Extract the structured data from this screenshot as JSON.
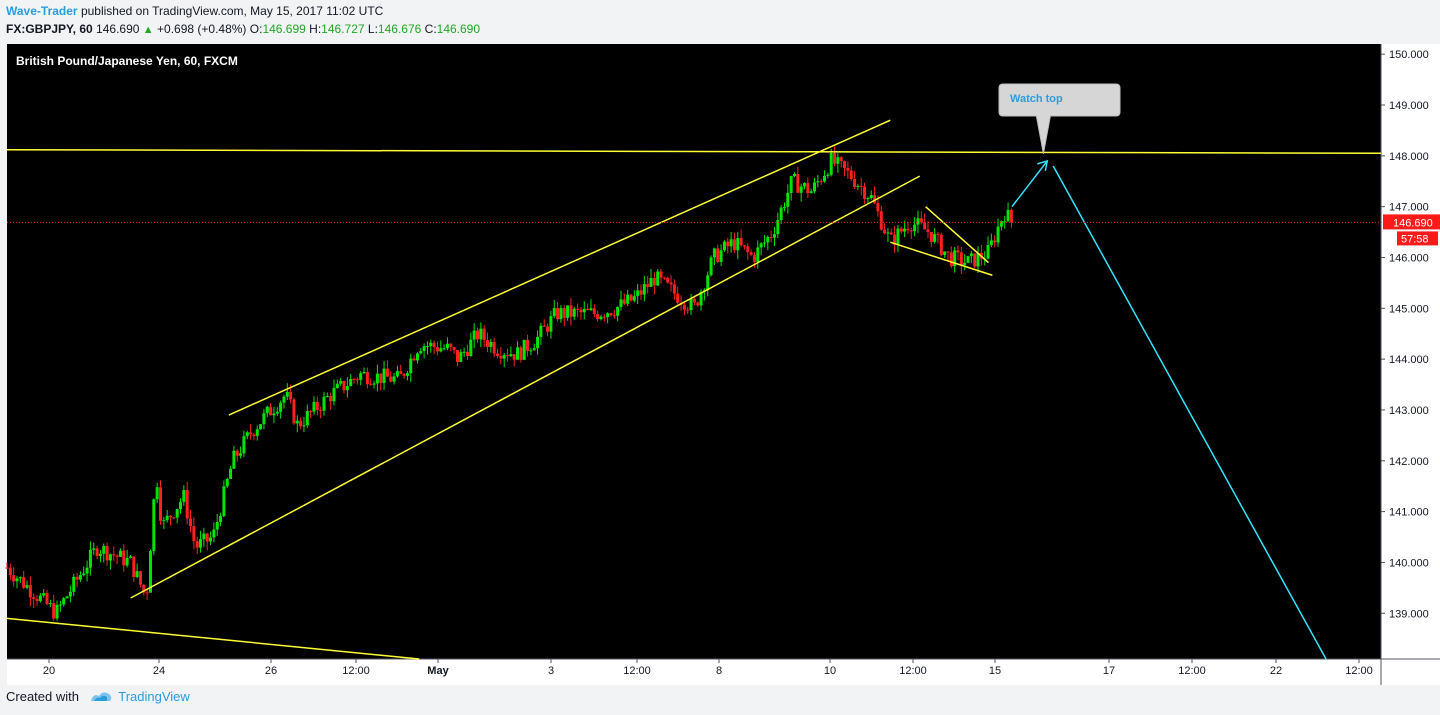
{
  "header": {
    "author": "Wave-Trader",
    "published": "published on TradingView.com, May 15, 2017 11:02 UTC",
    "symbol": "FX:GBPJPY, 60",
    "last": "146.690",
    "change": "+0.698 (+0.48%)",
    "open_label": "O:",
    "open": "146.699",
    "high_label": "H:",
    "high": "146.727",
    "low_label": "L:",
    "low": "146.676",
    "close_label": "C:",
    "close": "146.690"
  },
  "chart_title": "British Pound/Japanese Yen, 60, FXCM",
  "callout": "Watch top",
  "footer": {
    "created_with": "Created with",
    "brand": "TradingView"
  },
  "colors": {
    "background": "#000000",
    "up": "#00e500",
    "down": "#ff2020",
    "trendline": "#ffff33",
    "projection": "#33e5ff",
    "price_tag": "#ff1a1a"
  },
  "chart_data": {
    "type": "candlestick",
    "title": "British Pound/Japanese Yen, 60, FXCM",
    "y_ticks": [
      "150.000",
      "149.000",
      "148.000",
      "147.000",
      "146.000",
      "145.000",
      "144.000",
      "143.000",
      "142.000",
      "141.000",
      "140.000",
      "139.000"
    ],
    "ylim": [
      138.1,
      150.2
    ],
    "x_ticks": [
      "20",
      "24",
      "26",
      "12:00",
      "May",
      "3",
      "12:00",
      "8",
      "10",
      "12:00",
      "15",
      "17",
      "12:00",
      "22",
      "12:00"
    ],
    "last_price_label": "146.690",
    "countdown_label": "57:58",
    "close_path": [
      {
        "x": 0,
        "y": 139.9
      },
      {
        "x": 2.5,
        "y": 139.0
      },
      {
        "x": 4.6,
        "y": 140.3
      },
      {
        "x": 6.3,
        "y": 140.0
      },
      {
        "x": 7.1,
        "y": 139.3
      },
      {
        "x": 7.6,
        "y": 141.8
      },
      {
        "x": 7.9,
        "y": 140.7
      },
      {
        "x": 9,
        "y": 141.3
      },
      {
        "x": 9.6,
        "y": 140.3
      },
      {
        "x": 10.5,
        "y": 140.5
      },
      {
        "x": 11.5,
        "y": 142.0
      },
      {
        "x": 12.5,
        "y": 142.6
      },
      {
        "x": 13.2,
        "y": 142.9
      },
      {
        "x": 14.2,
        "y": 143.3
      },
      {
        "x": 14.8,
        "y": 142.7
      },
      {
        "x": 16.5,
        "y": 143.3
      },
      {
        "x": 18,
        "y": 143.7
      },
      {
        "x": 20,
        "y": 143.6
      },
      {
        "x": 21,
        "y": 144.3
      },
      {
        "x": 22.5,
        "y": 144.2
      },
      {
        "x": 23,
        "y": 144.0
      },
      {
        "x": 24,
        "y": 144.5
      },
      {
        "x": 25,
        "y": 144.2
      },
      {
        "x": 26,
        "y": 144.1
      },
      {
        "x": 27,
        "y": 144.4
      },
      {
        "x": 28,
        "y": 144.9
      },
      {
        "x": 30,
        "y": 144.9
      },
      {
        "x": 31,
        "y": 145.0
      },
      {
        "x": 32,
        "y": 145.2
      },
      {
        "x": 33,
        "y": 145.6
      },
      {
        "x": 34,
        "y": 145.3
      },
      {
        "x": 35,
        "y": 145.0
      },
      {
        "x": 36,
        "y": 146.0
      },
      {
        "x": 37,
        "y": 146.3
      },
      {
        "x": 38,
        "y": 146.0
      },
      {
        "x": 39,
        "y": 146.5
      },
      {
        "x": 40,
        "y": 147.5
      },
      {
        "x": 41,
        "y": 147.3
      },
      {
        "x": 42,
        "y": 147.9
      },
      {
        "x": 43,
        "y": 147.6
      },
      {
        "x": 44,
        "y": 147.2
      },
      {
        "x": 45,
        "y": 146.3
      },
      {
        "x": 46,
        "y": 146.7
      },
      {
        "x": 47,
        "y": 146.5
      },
      {
        "x": 48,
        "y": 146.0
      },
      {
        "x": 49,
        "y": 145.9
      },
      {
        "x": 50,
        "y": 146.1
      },
      {
        "x": 50.8,
        "y": 146.9
      },
      {
        "x": 51.2,
        "y": 146.69
      }
    ],
    "trend_lines": [
      {
        "x1": 11.3,
        "y1": 142.9,
        "x2": 45,
        "y2": 148.7
      },
      {
        "x1": 6.3,
        "y1": 139.3,
        "x2": 46.5,
        "y2": 147.6
      },
      {
        "x1": 0,
        "y1": 138.9,
        "x2": 21,
        "y2": 138.1
      },
      {
        "x1": 0,
        "y1": 148.12,
        "x2": 70,
        "y2": 148.05
      },
      {
        "x1": 46.8,
        "y1": 147.0,
        "x2": 50,
        "y2": 145.9
      },
      {
        "x1": 45,
        "y1": 146.3,
        "x2": 50.2,
        "y2": 145.65
      }
    ],
    "projection": {
      "arrow": {
        "x1": 51.2,
        "y1": 147.0,
        "x2": 53,
        "y2": 147.9
      },
      "line": {
        "x1": 53.3,
        "y1": 147.8,
        "x2": 67.2,
        "y2": 138.1
      }
    },
    "callout_point": {
      "x": 52.8,
      "y": 148.0
    },
    "last_price": 146.69
  }
}
